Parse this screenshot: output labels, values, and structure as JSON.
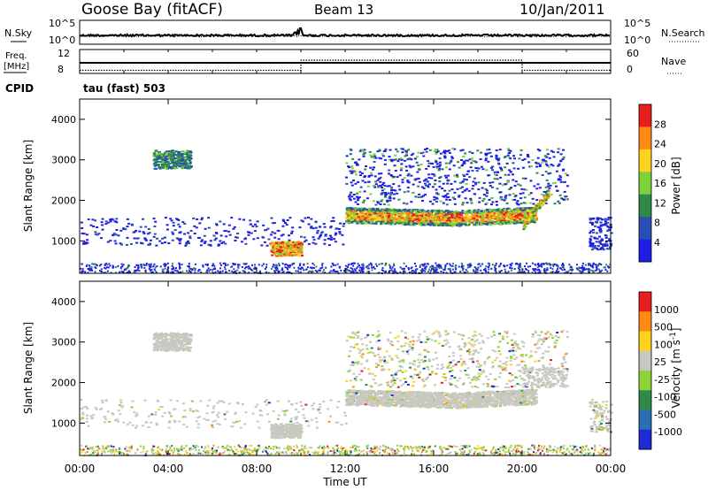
{
  "header": {
    "station": "Goose Bay (fitACF)",
    "beam": "Beam 13",
    "date": "10/Jan/2011"
  },
  "noise_panel": {
    "left_label": "N.Sky",
    "right_label": "N.Search",
    "left_ticks": [
      "10^5",
      "10^0"
    ],
    "right_ticks": [
      "10^5",
      "10^0"
    ]
  },
  "freq_panel": {
    "left_label_1": "Freq.",
    "left_label_2": "[MHz]",
    "right_label": "Nave",
    "left_ticks": [
      "12",
      "8"
    ],
    "right_ticks": [
      "60",
      "0"
    ],
    "freq_level_mhz": 10,
    "nave_step": {
      "low": 4,
      "high": 34,
      "start": "10:00",
      "end": "20:00"
    }
  },
  "cpid": {
    "label": "CPID",
    "value": "tau (fast) 503"
  },
  "chart_data": [
    {
      "type": "heatmap",
      "name": "power",
      "ylabel": "Slant Range [km]",
      "yticks": [
        "1000",
        "2000",
        "3000",
        "4000"
      ],
      "ylim": [
        200,
        4500
      ],
      "xlim": [
        "00:00",
        "24:00"
      ],
      "colorbar": {
        "label": "Power [dB]",
        "ticks": [
          "4",
          "8",
          "12",
          "16",
          "20",
          "24",
          "28"
        ],
        "colors": [
          "#1e1ee6",
          "#2a4fb4",
          "#2f8a4a",
          "#7dd23a",
          "#ffd21e",
          "#ff8a14",
          "#e61e1e"
        ],
        "range": [
          0,
          30
        ]
      },
      "regions": [
        {
          "t0": 3.3,
          "t1": 5.0,
          "r0": 2800,
          "r1": 3200,
          "level": "medium-high"
        },
        {
          "t0": 8.6,
          "t1": 10.0,
          "r0": 700,
          "r1": 1000,
          "level": "high"
        },
        {
          "t0": 12.0,
          "t1": 20.5,
          "r0": 1400,
          "r1": 1800,
          "level": "high"
        },
        {
          "t0": 0.0,
          "t1": 24.0,
          "r0": 200,
          "r1": 450,
          "level": "low"
        }
      ]
    },
    {
      "type": "heatmap",
      "name": "velocity",
      "ylabel": "Slant Range [km]",
      "yticks": [
        "1000",
        "2000",
        "3000",
        "4000"
      ],
      "ylim": [
        200,
        4500
      ],
      "xlim": [
        "00:00",
        "24:00"
      ],
      "colorbar": {
        "label": "Velocity [m s^-1]",
        "ticks": [
          "1000",
          "500",
          "100",
          "25",
          "-25",
          "-100",
          "-500",
          "-1000"
        ],
        "colors": [
          "#1e2ad2",
          "#2a6fb4",
          "#2f8a4a",
          "#8fd23a",
          "#c8c8c0",
          "#ffd21e",
          "#ff8a14",
          "#e61e1e"
        ],
        "range": [
          -1000,
          1000
        ]
      },
      "regions": [
        {
          "t0": 3.3,
          "t1": 5.0,
          "r0": 2800,
          "r1": 3200,
          "level": "ground-scatter"
        },
        {
          "t0": 8.6,
          "t1": 10.0,
          "r0": 700,
          "r1": 1000,
          "level": "ground-scatter"
        },
        {
          "t0": 12.0,
          "t1": 20.5,
          "r0": 1400,
          "r1": 1800,
          "level": "ground-scatter"
        },
        {
          "t0": 0.0,
          "t1": 24.0,
          "r0": 200,
          "r1": 450,
          "level": "mixed"
        }
      ]
    }
  ],
  "x_axis": {
    "ticks": [
      "00:00",
      "04:00",
      "08:00",
      "12:00",
      "16:00",
      "20:00",
      "00:00"
    ],
    "label": "Time UT"
  }
}
